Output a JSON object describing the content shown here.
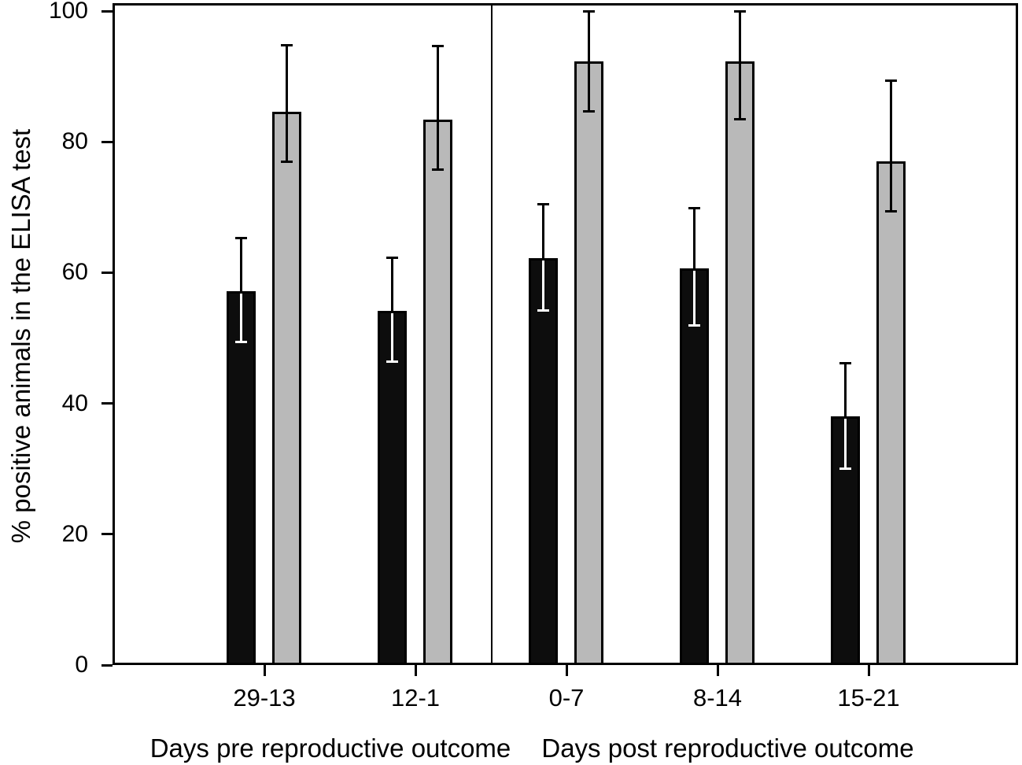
{
  "figure": {
    "background": "#ffffff",
    "axis_color": "#000000"
  },
  "chart_data": {
    "type": "bar",
    "title": "",
    "ylabel": "% positive animals in the ELISA test",
    "xlabel": "",
    "ylim": [
      0,
      100
    ],
    "yticks": [
      0,
      20,
      40,
      60,
      80,
      100
    ],
    "grid": false,
    "legend_position": "none",
    "categories": [
      "29-13",
      "12-1",
      "0-7",
      "8-14",
      "15-21"
    ],
    "category_groups": [
      {
        "title": "Days pre reproductive outcome",
        "categories": [
          "29-13",
          "12-1"
        ]
      },
      {
        "title": "Days post reproductive outcome",
        "categories": [
          "0-7",
          "8-14",
          "15-21"
        ]
      }
    ],
    "panel_divider_between": [
      "12-1",
      "0-7"
    ],
    "series": [
      {
        "name": "black-bars",
        "fill": "#0d0d0d",
        "stroke": "#000000",
        "error_inner_color": "#ffffff",
        "values": [
          57.2,
          54.2,
          62.2,
          60.7,
          38.0
        ],
        "err_high": [
          65.3,
          62.3,
          70.4,
          69.8,
          46.1
        ],
        "err_low": [
          49.4,
          46.4,
          54.2,
          51.9,
          30.0
        ]
      },
      {
        "name": "grey-bars",
        "fill": "#b9b9b9",
        "stroke": "#000000",
        "error_inner_color": "#000000",
        "values": [
          84.6,
          83.4,
          92.3,
          92.3,
          77.0
        ],
        "err_high": [
          94.8,
          94.7,
          100.0,
          100.0,
          89.3
        ],
        "err_low": [
          77.0,
          75.7,
          84.6,
          83.5,
          69.4
        ]
      }
    ]
  }
}
